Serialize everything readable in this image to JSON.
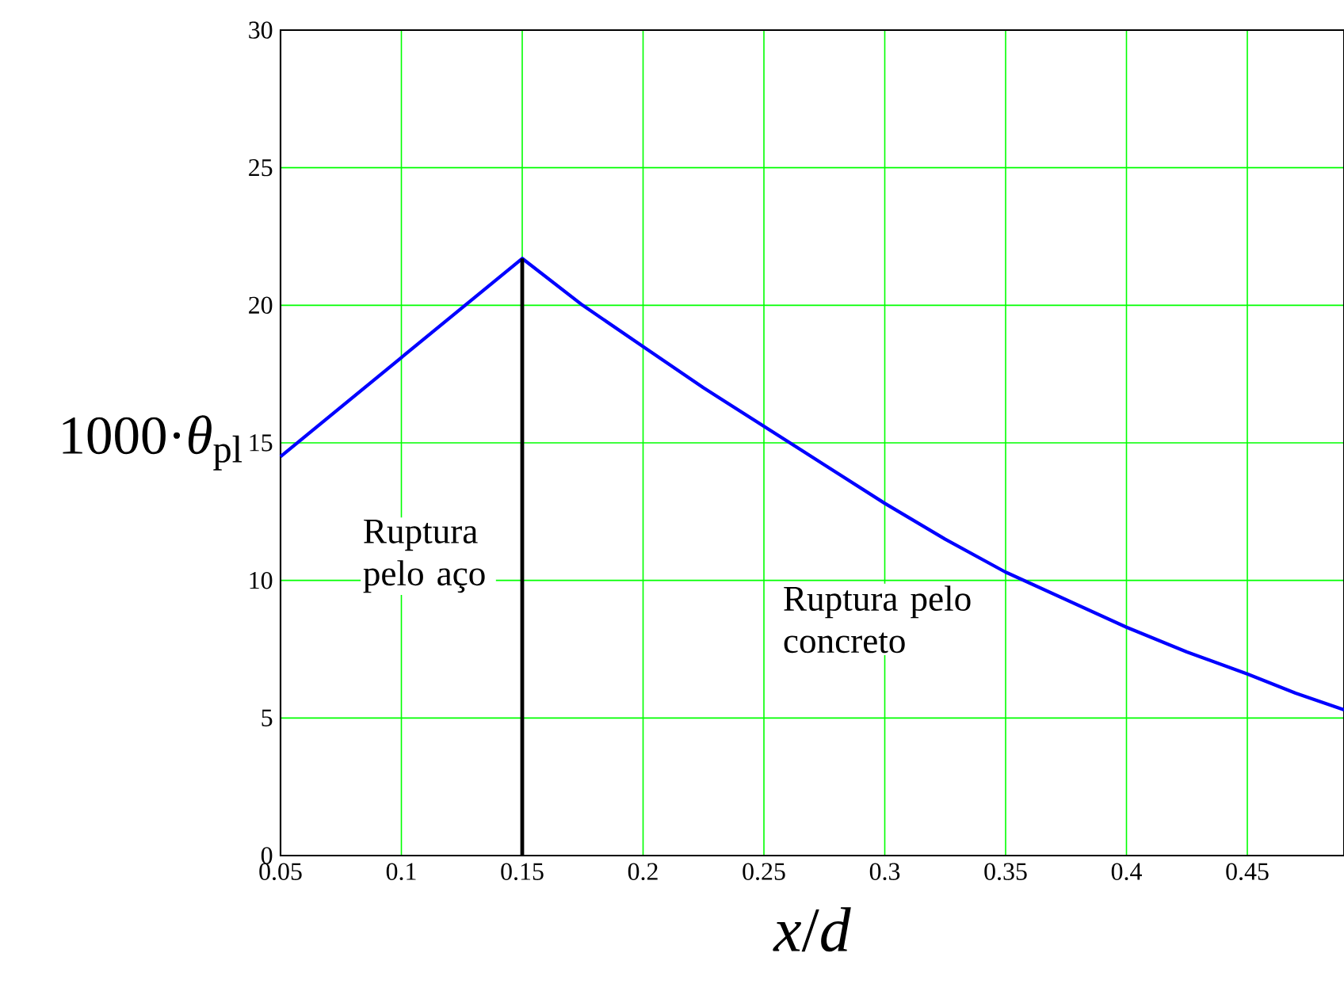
{
  "chart_data": {
    "type": "line",
    "xlabel": "*x*/*d*",
    "ylabel": "1000·*θ*$_{pl}$",
    "xlim": [
      0.05,
      0.49
    ],
    "ylim": [
      0,
      30
    ],
    "xticks": [
      0.05,
      0.1,
      0.15,
      0.2,
      0.25,
      0.3,
      0.35,
      0.4,
      0.45
    ],
    "yticks": [
      0,
      5,
      10,
      15,
      20,
      25,
      30
    ],
    "grid": true,
    "series": [
      {
        "color": "#0000ff",
        "x": [
          0.05,
          0.1,
          0.15,
          0.175,
          0.2,
          0.225,
          0.25,
          0.275,
          0.3,
          0.325,
          0.35,
          0.375,
          0.4,
          0.425,
          0.45,
          0.47,
          0.49
        ],
        "values": [
          14.5,
          18.1,
          21.7,
          20.0,
          18.5,
          17.0,
          15.6,
          14.2,
          12.8,
          11.5,
          10.3,
          9.3,
          8.3,
          7.4,
          6.6,
          5.9,
          5.3
        ]
      },
      {
        "color": "#000000",
        "x": [
          0.15,
          0.15
        ],
        "values": [
          0,
          21.7
        ]
      }
    ],
    "annotations": [
      "Ruptura pelo aço",
      "Ruptura pelo concreto"
    ]
  }
}
